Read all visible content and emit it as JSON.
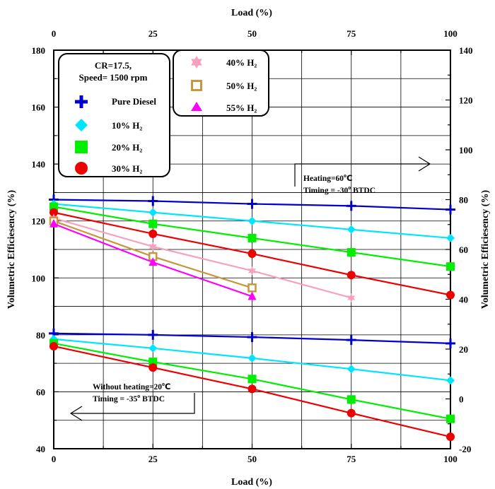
{
  "chart_data": {
    "type": "line",
    "x_top_label": "Load (%)",
    "x_bottom_label": "Load (%)",
    "y_left_label": "Volumetric Efficiesency (%)",
    "y_right_label": "Volumetric Efficiesency (%)",
    "x_ticks": [
      "0",
      "25",
      "50",
      "75",
      "100"
    ],
    "y_left_ticks": [
      "40",
      "60",
      "80",
      "100",
      "120",
      "140",
      "160",
      "180"
    ],
    "y_right_ticks": [
      "-20",
      "0",
      "20",
      "40",
      "60",
      "80",
      "100",
      "120",
      "140"
    ],
    "xlim": [
      0,
      100
    ],
    "ylim_left": [
      40,
      180
    ],
    "ylim_right": [
      -20,
      140
    ],
    "grid": true,
    "legend_box1": {
      "title_line1": "CR=17.5,",
      "title_line2": "Speed= 1500 rpm",
      "entries": [
        "Pure Diesel",
        "10% H₂",
        "20% H₂",
        "30% H₂"
      ]
    },
    "legend_box2": {
      "entries": [
        "40% H₂",
        "50% H₂",
        "55% H₂"
      ]
    },
    "annotation_heating": {
      "line1": "Heating=60",
      "line1_unit": "C",
      "line2": "Timing = -30",
      "line2_unit": " BTDC"
    },
    "annotation_no_heating": {
      "line1": "Without heating=20",
      "line1_unit": "C",
      "line2": "Timing = -35",
      "line2_unit": " BTDC"
    },
    "series": [
      {
        "name": "Pure Diesel",
        "group": "heating",
        "color": "#0000cc",
        "marker": "plus",
        "x": [
          0,
          25,
          50,
          75,
          100
        ],
        "y": [
          127.5,
          127,
          126,
          125.3,
          124
        ]
      },
      {
        "name": "10% H₂",
        "group": "heating",
        "color": "#00e5ff",
        "marker": "diamond",
        "x": [
          0,
          25,
          50,
          75,
          100
        ],
        "y": [
          126,
          123,
          120,
          117,
          114
        ]
      },
      {
        "name": "20% H₂",
        "group": "heating",
        "color": "#00ee00",
        "marker": "square",
        "x": [
          0,
          25,
          50,
          75,
          100
        ],
        "y": [
          125,
          119,
          114,
          109,
          104
        ]
      },
      {
        "name": "30% H₂",
        "group": "heating",
        "color": "#ee0000",
        "marker": "circle",
        "x": [
          0,
          25,
          50,
          75,
          100
        ],
        "y": [
          123,
          115.5,
          108.5,
          101,
          94
        ]
      },
      {
        "name": "40% H₂",
        "group": "heating",
        "color": "#f7a0c0",
        "marker": "star",
        "x": [
          0,
          25,
          50,
          75
        ],
        "y": [
          121,
          111,
          102.5,
          93
        ]
      },
      {
        "name": "50% H₂",
        "group": "heating",
        "color": "#c8963c",
        "marker": "open-square",
        "x": [
          0,
          25,
          50
        ],
        "y": [
          120,
          107.5,
          96.5
        ]
      },
      {
        "name": "55% H₂",
        "group": "heating",
        "color": "#ff00ff",
        "marker": "triangle",
        "x": [
          0,
          25,
          50
        ],
        "y": [
          119,
          105.5,
          93.5
        ]
      },
      {
        "name": "Pure Diesel",
        "group": "no-heating",
        "color": "#0000cc",
        "marker": "plus",
        "x": [
          0,
          25,
          50,
          75,
          100
        ],
        "y": [
          80.5,
          80,
          79.2,
          78.2,
          77
        ]
      },
      {
        "name": "10% H₂",
        "group": "no-heating",
        "color": "#00e5ff",
        "marker": "diamond",
        "x": [
          0,
          25,
          50,
          75,
          100
        ],
        "y": [
          78.5,
          75.3,
          71.8,
          68,
          64
        ]
      },
      {
        "name": "20% H₂",
        "group": "no-heating",
        "color": "#00ee00",
        "marker": "square",
        "x": [
          0,
          25,
          50,
          75,
          100
        ],
        "y": [
          77,
          70.5,
          64.5,
          57.3,
          50.5
        ]
      },
      {
        "name": "30% H₂",
        "group": "no-heating",
        "color": "#ee0000",
        "marker": "circle",
        "x": [
          0,
          25,
          50,
          75,
          100
        ],
        "y": [
          76,
          68.5,
          61,
          52.5,
          44.2
        ]
      }
    ]
  }
}
